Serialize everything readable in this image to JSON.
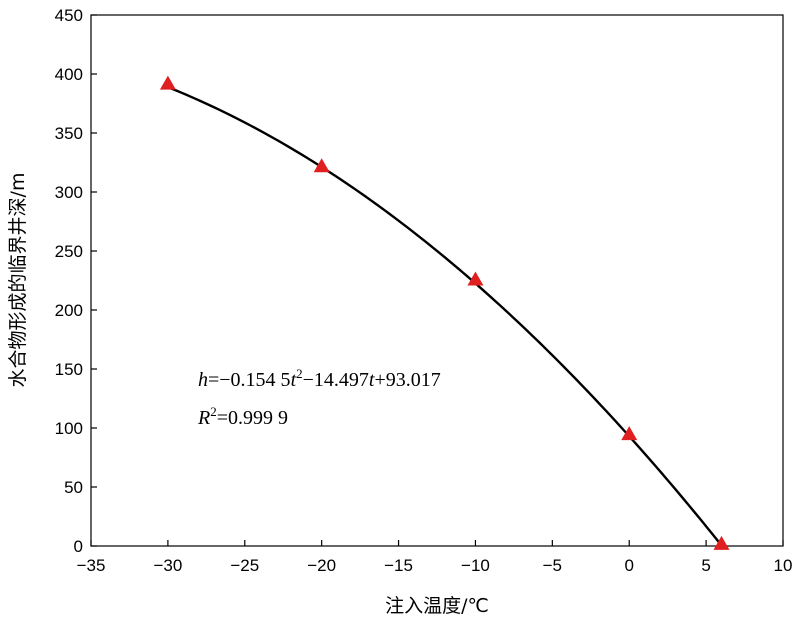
{
  "chart_data": {
    "type": "scatter",
    "title": "",
    "xlabel": "注入温度/℃",
    "ylabel": "水合物形成的临界井深/m",
    "xlim": [
      -35,
      10
    ],
    "ylim": [
      0,
      450
    ],
    "xticks": [
      "−35",
      "−30",
      "−25",
      "−20",
      "−15",
      "−10",
      "−5",
      "0",
      "5",
      "10"
    ],
    "yticks": [
      "0",
      "50",
      "100",
      "150",
      "200",
      "250",
      "300",
      "350",
      "400",
      "450"
    ],
    "series": [
      {
        "marker": "triangle",
        "color": "#e02020",
        "points": [
          {
            "x": -30,
            "y": 391
          },
          {
            "x": -20,
            "y": 321
          },
          {
            "x": -10,
            "y": 225
          },
          {
            "x": 0,
            "y": 94
          },
          {
            "x": 6,
            "y": 1
          }
        ]
      }
    ],
    "fit": {
      "type": "polynomial-2",
      "coefficients": {
        "a": -0.1545,
        "b": -14.497,
        "c": 93.017
      },
      "x_range": [
        -30,
        6
      ],
      "color": "#000000"
    },
    "annotations": {
      "eq": {
        "h": "h",
        "eq1": "=−0.154 5",
        "t1": "t",
        "sup1": "2",
        "eq2": "−14.497",
        "t2": "t",
        "eq3": "+93.017"
      },
      "r2": {
        "R": "R",
        "sup": "2",
        "val": "=0.999 9"
      }
    }
  }
}
